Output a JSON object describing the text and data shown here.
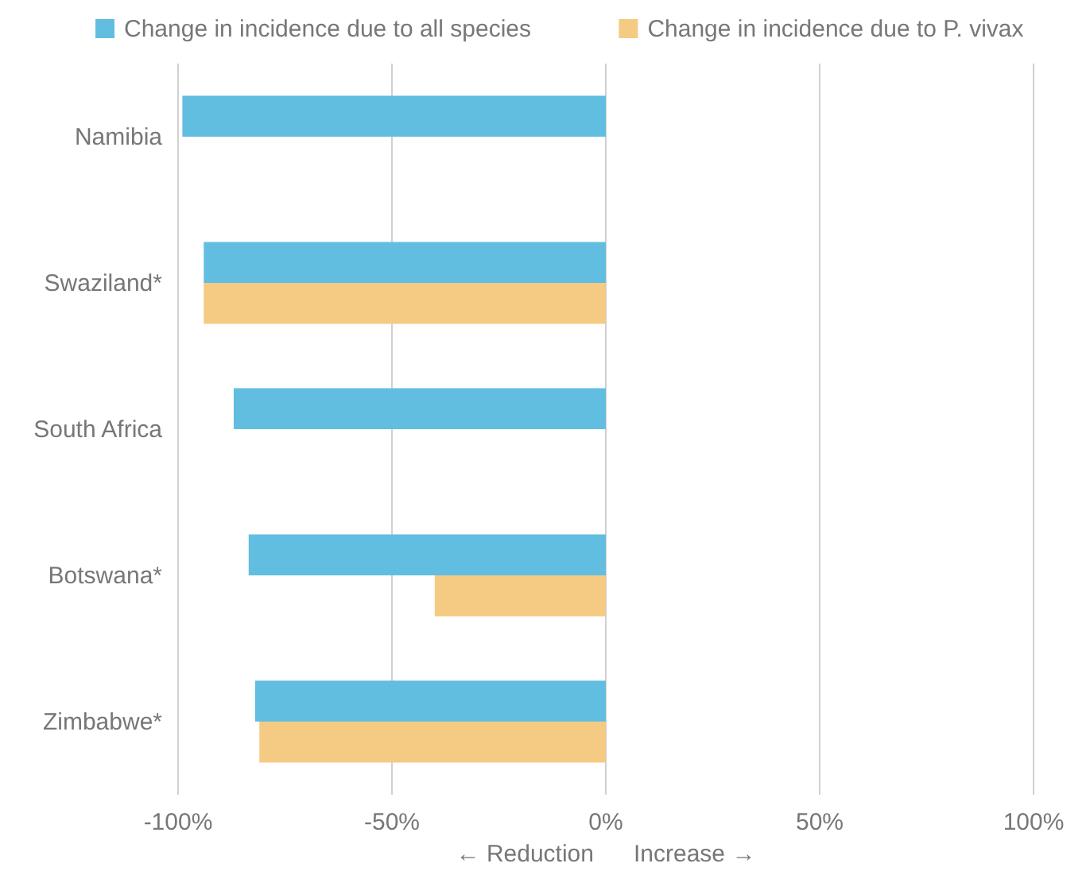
{
  "chart_data": {
    "type": "bar",
    "orientation": "horizontal",
    "categories": [
      "Namibia",
      "Swaziland*",
      "South Africa",
      "Botswana*",
      "Zimbabwe*"
    ],
    "series": [
      {
        "name": "Change in incidence due to all species",
        "color": "#62bee0",
        "values": [
          -99,
          -94,
          -87,
          -83.5,
          -82
        ]
      },
      {
        "name": "Change in incidence due to P. vivax",
        "color": "#f5ca82",
        "values": [
          null,
          -94,
          null,
          -40,
          -81
        ]
      }
    ],
    "xlim": [
      -100,
      100
    ],
    "xticks": [
      {
        "value": -100,
        "label": "-100%"
      },
      {
        "value": -50,
        "label": "-50%"
      },
      {
        "value": 0,
        "label": "0%"
      },
      {
        "value": 50,
        "label": "50%"
      },
      {
        "value": 100,
        "label": "100%"
      }
    ],
    "xlabel": "← Reduction      Increase →",
    "grid": "x",
    "legend": "top"
  }
}
